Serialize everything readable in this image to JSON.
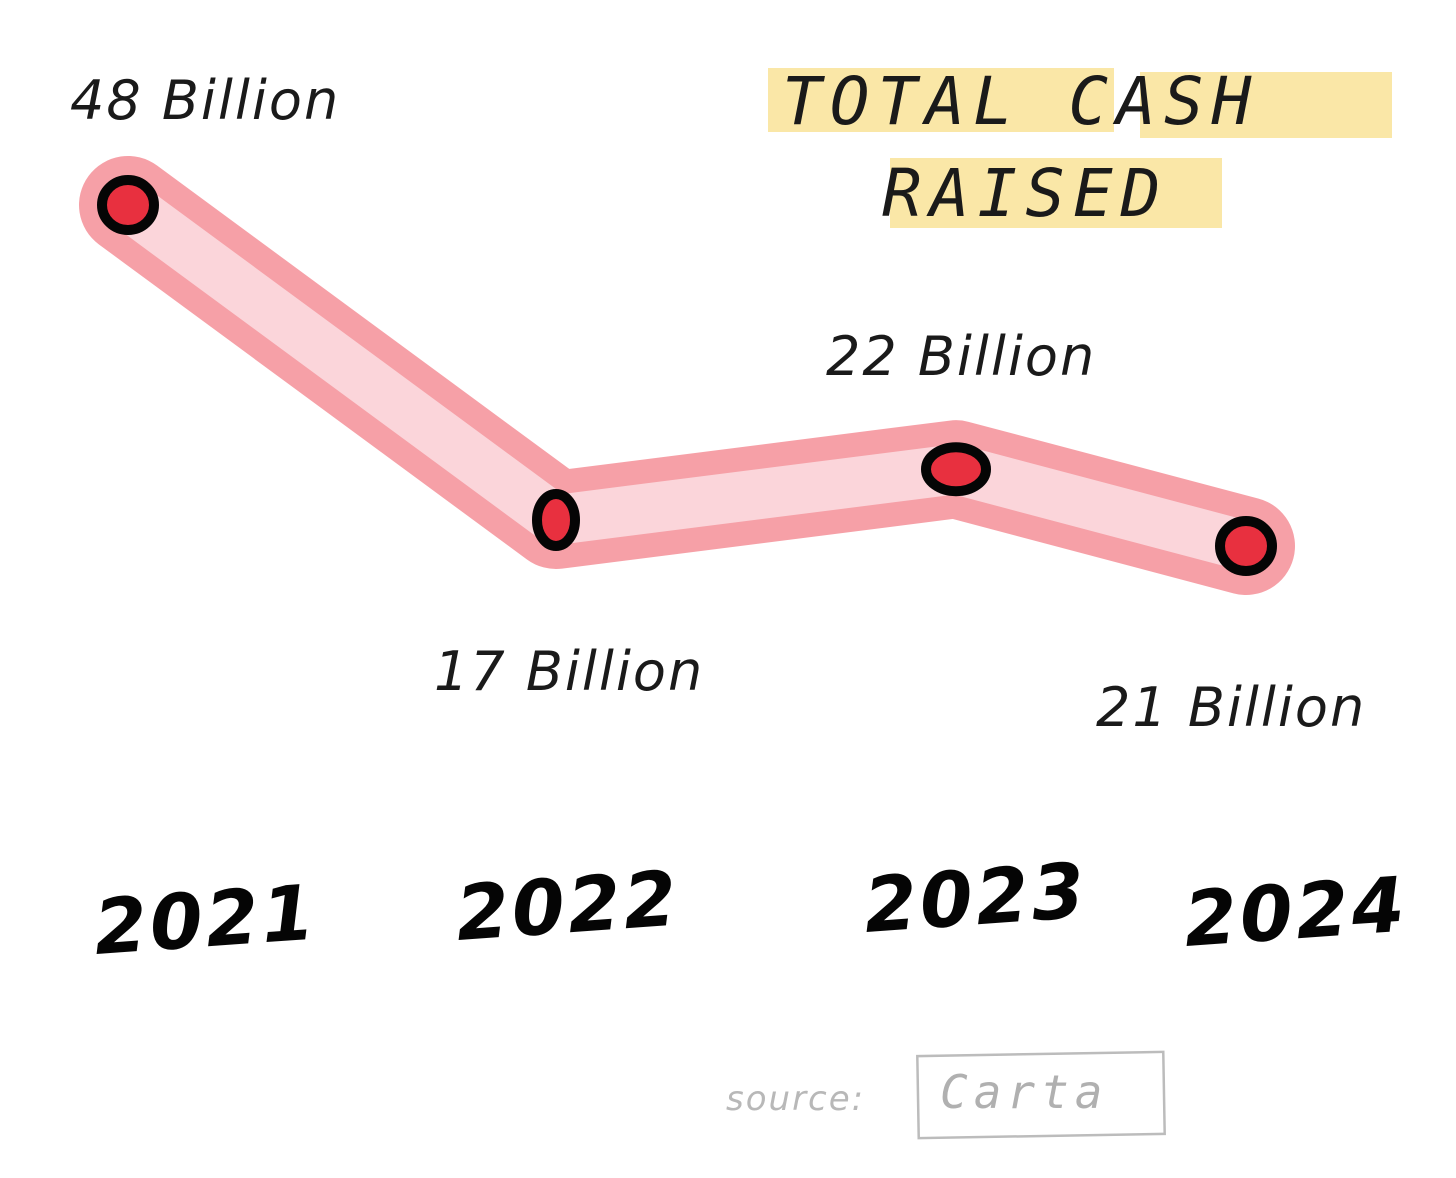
{
  "chart_data": {
    "type": "line",
    "title": [
      "TOTAL CASH",
      "RAISED"
    ],
    "categories": [
      "2021",
      "2022",
      "2023",
      "2024"
    ],
    "series": [
      {
        "values": [
          48,
          17,
          22,
          21
        ],
        "labels": [
          "48 Billion",
          "17 Billion",
          "22 Billion",
          "21 Billion"
        ]
      }
    ],
    "ylim": [
      0,
      50
    ],
    "grid": false,
    "colors": {
      "line_band": "#f27b85",
      "line_core": "#fbd8dc",
      "point_fill": "#e8303f",
      "point_stroke": "#050505",
      "highlight": "#f8df8a"
    }
  },
  "source": {
    "label": "source:",
    "name": "Carta"
  }
}
